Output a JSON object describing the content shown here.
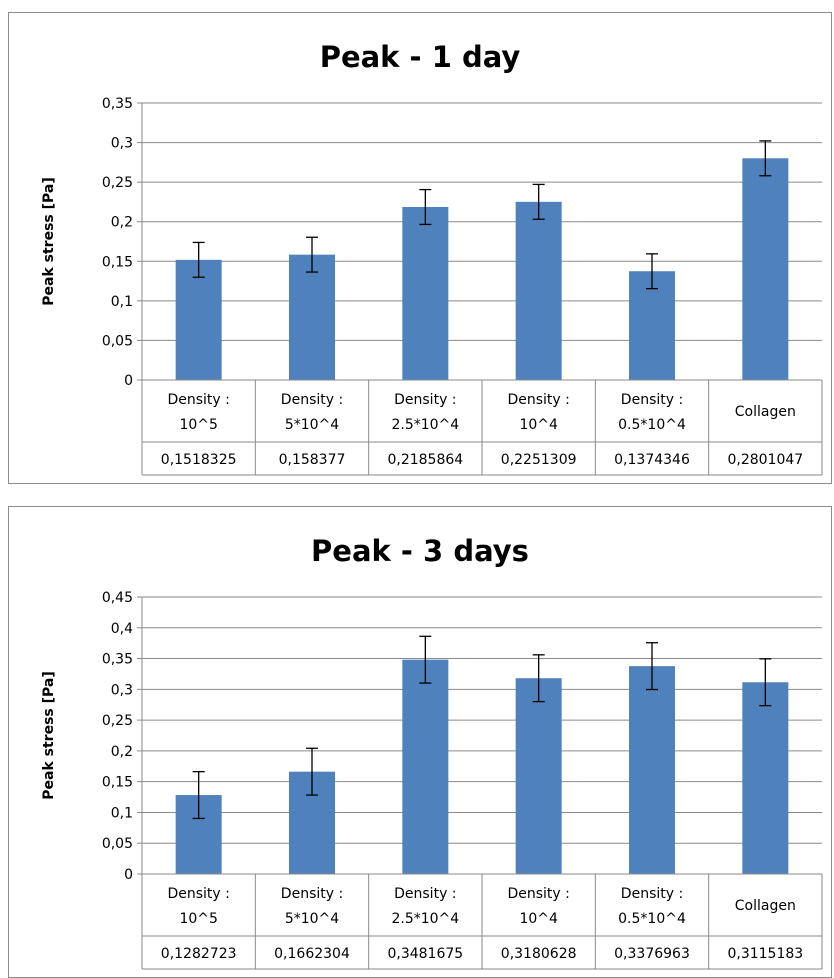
{
  "chart_data": [
    {
      "type": "bar",
      "title": "Peak - 1 day",
      "ylabel": "Peak stress [Pa]",
      "xlabel": "",
      "categories": [
        [
          "Density :",
          "10^5"
        ],
        [
          "Density :",
          "5*10^4"
        ],
        [
          "Density :",
          "2.5*10^4"
        ],
        [
          "Density :",
          "10^4"
        ],
        [
          "Density :",
          "0.5*10^4"
        ],
        [
          "Collagen"
        ]
      ],
      "values": [
        0.1518325,
        0.158377,
        0.2185864,
        0.2251309,
        0.1374346,
        0.2801047
      ],
      "table_values": [
        "0,1518325",
        "0,158377",
        "0,2185864",
        "0,2251309",
        "0,1374346",
        "0,2801047"
      ],
      "errors": [
        0.022,
        0.022,
        0.022,
        0.022,
        0.022,
        0.022
      ],
      "ylim": [
        0,
        0.35
      ],
      "yticks": [
        0,
        0.05,
        0.1,
        0.15,
        0.2,
        0.25,
        0.3,
        0.35
      ],
      "yticklabels": [
        "0",
        "0,05",
        "0,1",
        "0,15",
        "0,2",
        "0,25",
        "0,3",
        "0,35"
      ],
      "grid": true,
      "legend": "none",
      "bar_color": "#4f81bd"
    },
    {
      "type": "bar",
      "title": "Peak - 3 days",
      "ylabel": "Peak stress [Pa]",
      "xlabel": "",
      "categories": [
        [
          "Density :",
          "10^5"
        ],
        [
          "Density :",
          "5*10^4"
        ],
        [
          "Density :",
          "2.5*10^4"
        ],
        [
          "Density :",
          "10^4"
        ],
        [
          "Density :",
          "0.5*10^4"
        ],
        [
          "Collagen"
        ]
      ],
      "values": [
        0.1282723,
        0.1662304,
        0.3481675,
        0.3180628,
        0.3376963,
        0.3115183
      ],
      "table_values": [
        "0,1282723",
        "0,1662304",
        "0,3481675",
        "0,3180628",
        "0,3376963",
        "0,3115183"
      ],
      "errors": [
        0.038,
        0.038,
        0.038,
        0.038,
        0.038,
        0.038
      ],
      "ylim": [
        0,
        0.45
      ],
      "yticks": [
        0,
        0.05,
        0.1,
        0.15,
        0.2,
        0.25,
        0.3,
        0.35,
        0.4,
        0.45
      ],
      "yticklabels": [
        "0",
        "0,05",
        "0,1",
        "0,15",
        "0,2",
        "0,25",
        "0,3",
        "0,35",
        "0,4",
        "0,45"
      ],
      "grid": true,
      "legend": "none",
      "bar_color": "#4f81bd"
    }
  ]
}
